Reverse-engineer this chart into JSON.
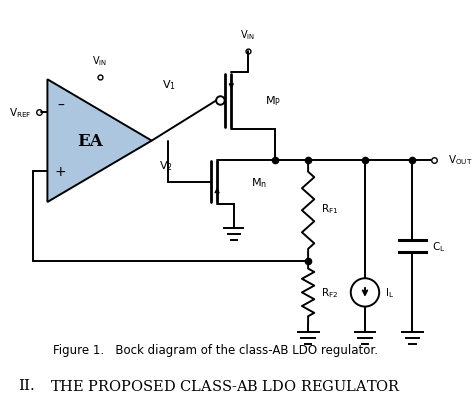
{
  "fig_caption": "Figure 1.   Bock diagram of the class-AB LDO regulator.",
  "section_title": "II.  The Proposed Class-AB LDO Regulator",
  "bg_color": "#ffffff",
  "ea_fill": "#adc6e0",
  "line_color": "#000000"
}
